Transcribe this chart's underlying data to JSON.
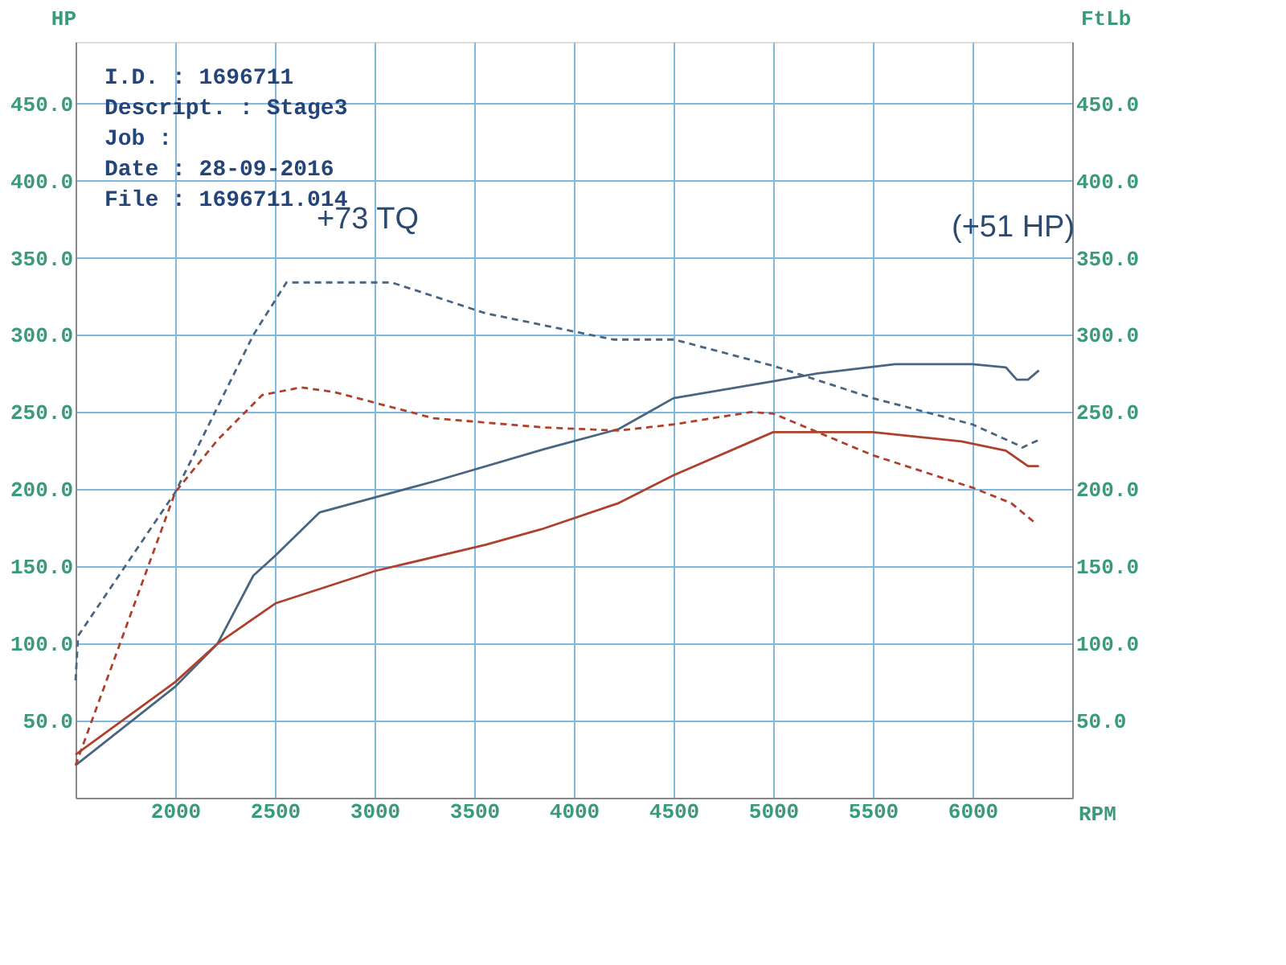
{
  "chart_data": {
    "type": "line",
    "xlabel": "RPM",
    "ylabel": "HP",
    "y2label": "FtLb",
    "xlim": [
      1500,
      6500
    ],
    "xticks": [
      2000,
      2500,
      3000,
      3500,
      4000,
      4500,
      5000,
      5500,
      6000
    ],
    "ylim": [
      0,
      490
    ],
    "yticks": [
      {
        "value": 50,
        "label": "50.0"
      },
      {
        "value": 100,
        "label": "100.0"
      },
      {
        "value": 150,
        "label": "150.0"
      },
      {
        "value": 200,
        "label": "200.0"
      },
      {
        "value": 250,
        "label": "250.0"
      },
      {
        "value": 300,
        "label": "300.0"
      },
      {
        "value": 350,
        "label": "350.0"
      },
      {
        "value": 400,
        "label": "400.0"
      },
      {
        "value": 450,
        "label": "450.0"
      }
    ],
    "y2lim": [
      0,
      490
    ],
    "y2ticks": [
      {
        "value": 50,
        "label": "50.0"
      },
      {
        "value": 100,
        "label": "100.0"
      },
      {
        "value": 150,
        "label": "150.0"
      },
      {
        "value": 200,
        "label": "200.0"
      },
      {
        "value": 250,
        "label": "250.0"
      },
      {
        "value": 300,
        "label": "300.0"
      },
      {
        "value": 350,
        "label": "350.0"
      },
      {
        "value": 400,
        "label": "400.0"
      },
      {
        "value": 450,
        "label": "450.0"
      }
    ],
    "grid": true,
    "series": [
      {
        "color": "#4a6580",
        "line_style": "solid",
        "x": [
          1500,
          2000,
          2213,
          2392,
          2503,
          2725,
          3297,
          3853,
          4225,
          4500,
          5000,
          5222,
          5611,
          6000,
          6167,
          6222,
          6278,
          6333
        ],
        "values": [
          21,
          72,
          100,
          144,
          157,
          185,
          205,
          226,
          239,
          259,
          270,
          275,
          281,
          281,
          279,
          271,
          271,
          277
        ]
      },
      {
        "color": "#b0402e",
        "line_style": "solid",
        "x": [
          1500,
          2000,
          2213,
          2503,
          3003,
          3558,
          3836,
          4225,
          4500,
          5000,
          5500,
          5944,
          6167,
          6278,
          6333
        ],
        "values": [
          28,
          75,
          100,
          126,
          147,
          164,
          174,
          191,
          209,
          237,
          237,
          231,
          225,
          215,
          215
        ]
      },
      {
        "color": "#4a6580",
        "line_style": "dashed",
        "axis": "y2",
        "x": [
          1500,
          1513,
          2000,
          2392,
          2558,
          3086,
          3558,
          4197,
          4503,
          5000,
          5500,
          6000,
          6222,
          6250,
          6333
        ],
        "values": [
          76,
          105,
          198,
          300,
          334,
          334,
          314,
          297,
          297,
          280,
          259,
          242,
          229,
          227,
          232
        ]
      },
      {
        "color": "#b0402e",
        "line_style": "dashed",
        "axis": "y2",
        "x": [
          1500,
          2000,
          2213,
          2436,
          2631,
          2797,
          3297,
          3853,
          4225,
          4500,
          4889,
          5000,
          5500,
          6000,
          6194,
          6306
        ],
        "values": [
          21,
          198,
          232,
          261,
          266,
          263,
          246,
          240,
          238,
          242,
          250,
          249,
          222,
          201,
          191,
          179
        ]
      }
    ],
    "annotations": [
      "+73 TQ",
      "(+51 HP)",
      "I.D.      : 1696711",
      "Descript. : Stage3",
      "Job       :",
      "Date      : 28-09-2016",
      "File      : 1696711.014"
    ]
  }
}
